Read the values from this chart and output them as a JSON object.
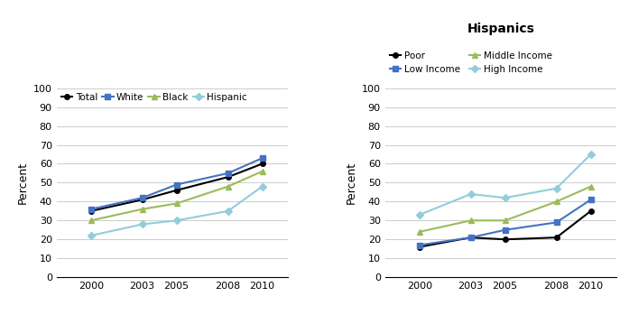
{
  "years": [
    2000,
    2003,
    2005,
    2008,
    2010
  ],
  "left_chart": {
    "series_order": [
      "Total",
      "White",
      "Black",
      "Hispanic"
    ],
    "series": {
      "Total": [
        35,
        41,
        46,
        53,
        60
      ],
      "White": [
        36,
        42,
        49,
        55,
        63
      ],
      "Black": [
        30,
        36,
        39,
        48,
        56
      ],
      "Hispanic": [
        22,
        28,
        30,
        35,
        48
      ]
    },
    "colors": {
      "Total": "#000000",
      "White": "#4472C4",
      "Black": "#9BBB59",
      "Hispanic": "#92CDDC"
    },
    "markers": {
      "Total": "o",
      "White": "s",
      "Black": "^",
      "Hispanic": "D"
    },
    "ylabel": "Percent",
    "ylim": [
      0,
      100
    ],
    "yticks": [
      0,
      10,
      20,
      30,
      40,
      50,
      60,
      70,
      80,
      90,
      100
    ]
  },
  "right_chart": {
    "title": "Hispanics",
    "series_order": [
      "Poor",
      "Low Income",
      "Middle Income",
      "High Income"
    ],
    "series": {
      "Poor": [
        16,
        21,
        20,
        21,
        35
      ],
      "Low Income": [
        17,
        21,
        25,
        29,
        41
      ],
      "Middle Income": [
        24,
        30,
        30,
        40,
        48
      ],
      "High Income": [
        33,
        44,
        42,
        47,
        65
      ]
    },
    "colors": {
      "Poor": "#000000",
      "Low Income": "#4472C4",
      "Middle Income": "#9BBB59",
      "High Income": "#92CDDC"
    },
    "markers": {
      "Poor": "o",
      "Low Income": "s",
      "Middle Income": "^",
      "High Income": "D"
    },
    "ylabel": "Percent",
    "ylim": [
      0,
      100
    ],
    "yticks": [
      0,
      10,
      20,
      30,
      40,
      50,
      60,
      70,
      80,
      90,
      100
    ]
  }
}
